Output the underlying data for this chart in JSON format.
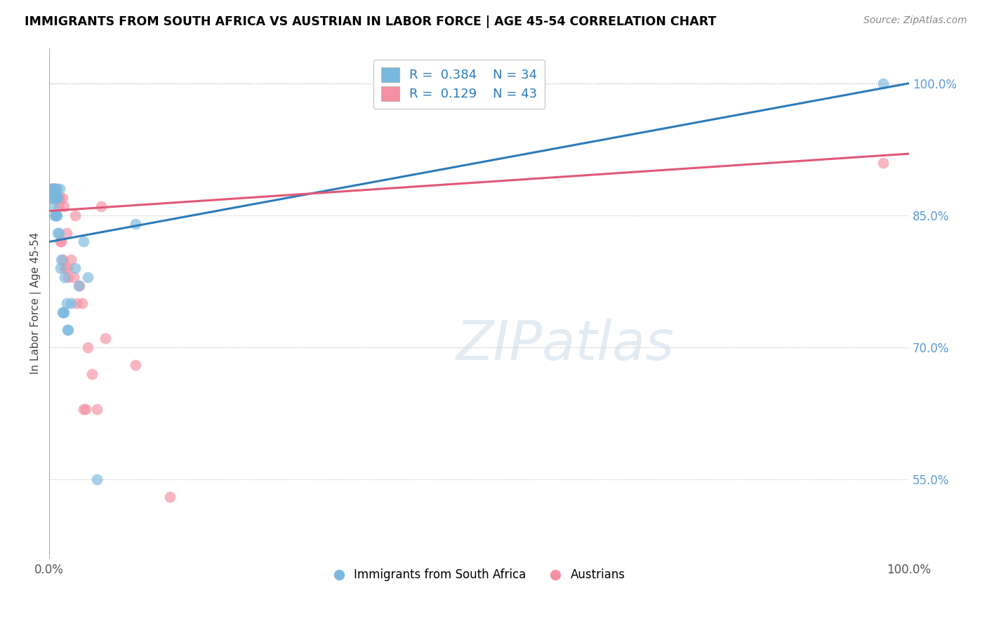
{
  "title": "IMMIGRANTS FROM SOUTH AFRICA VS AUSTRIAN IN LABOR FORCE | AGE 45-54 CORRELATION CHART",
  "source": "Source: ZipAtlas.com",
  "ylabel": "In Labor Force | Age 45-54",
  "xlim": [
    0,
    1
  ],
  "ylim": [
    0.46,
    1.04
  ],
  "right_yticks": [
    0.55,
    0.7,
    0.85,
    1.0
  ],
  "right_yticklabels": [
    "55.0%",
    "70.0%",
    "85.0%",
    "100.0%"
  ],
  "blue_R": 0.384,
  "blue_N": 34,
  "pink_R": 0.129,
  "pink_N": 43,
  "blue_color": "#7ab8de",
  "pink_color": "#f590a4",
  "blue_line_color": "#2b7bba",
  "pink_line_color": "#e05878",
  "legend_label_blue": "Immigrants from South Africa",
  "legend_label_pink": "Austrians",
  "blue_points_x": [
    0.003,
    0.003,
    0.004,
    0.005,
    0.005,
    0.006,
    0.006,
    0.007,
    0.007,
    0.008,
    0.008,
    0.009,
    0.009,
    0.01,
    0.01,
    0.011,
    0.012,
    0.013,
    0.014,
    0.015,
    0.016,
    0.017,
    0.018,
    0.02,
    0.021,
    0.022,
    0.025,
    0.03,
    0.034,
    0.04,
    0.045,
    0.055,
    0.1,
    0.97
  ],
  "blue_points_y": [
    0.87,
    0.88,
    0.88,
    0.87,
    0.86,
    0.87,
    0.85,
    0.88,
    0.85,
    0.85,
    0.87,
    0.88,
    0.85,
    0.83,
    0.87,
    0.83,
    0.88,
    0.79,
    0.8,
    0.74,
    0.74,
    0.74,
    0.78,
    0.75,
    0.72,
    0.72,
    0.75,
    0.79,
    0.77,
    0.82,
    0.78,
    0.55,
    0.84,
    1.0
  ],
  "pink_points_x": [
    0.002,
    0.003,
    0.003,
    0.004,
    0.004,
    0.005,
    0.005,
    0.005,
    0.006,
    0.006,
    0.006,
    0.007,
    0.007,
    0.008,
    0.009,
    0.01,
    0.011,
    0.012,
    0.013,
    0.014,
    0.015,
    0.016,
    0.017,
    0.018,
    0.02,
    0.021,
    0.022,
    0.025,
    0.028,
    0.03,
    0.032,
    0.035,
    0.038,
    0.04,
    0.042,
    0.045,
    0.05,
    0.055,
    0.06,
    0.065,
    0.1,
    0.14,
    0.97
  ],
  "pink_points_y": [
    0.88,
    0.88,
    0.88,
    0.88,
    0.88,
    0.87,
    0.87,
    0.87,
    0.88,
    0.88,
    0.88,
    0.87,
    0.87,
    0.87,
    0.87,
    0.87,
    0.86,
    0.87,
    0.82,
    0.82,
    0.87,
    0.8,
    0.86,
    0.79,
    0.83,
    0.79,
    0.78,
    0.8,
    0.78,
    0.85,
    0.75,
    0.77,
    0.75,
    0.63,
    0.63,
    0.7,
    0.67,
    0.63,
    0.86,
    0.71,
    0.68,
    0.53,
    0.91
  ],
  "blue_trend_x0": 0.0,
  "blue_trend_x1": 1.0,
  "blue_trend_y0": 0.82,
  "blue_trend_y1": 1.0,
  "pink_trend_x0": 0.0,
  "pink_trend_x1": 1.0,
  "pink_trend_y0": 0.855,
  "pink_trend_y1": 0.92
}
